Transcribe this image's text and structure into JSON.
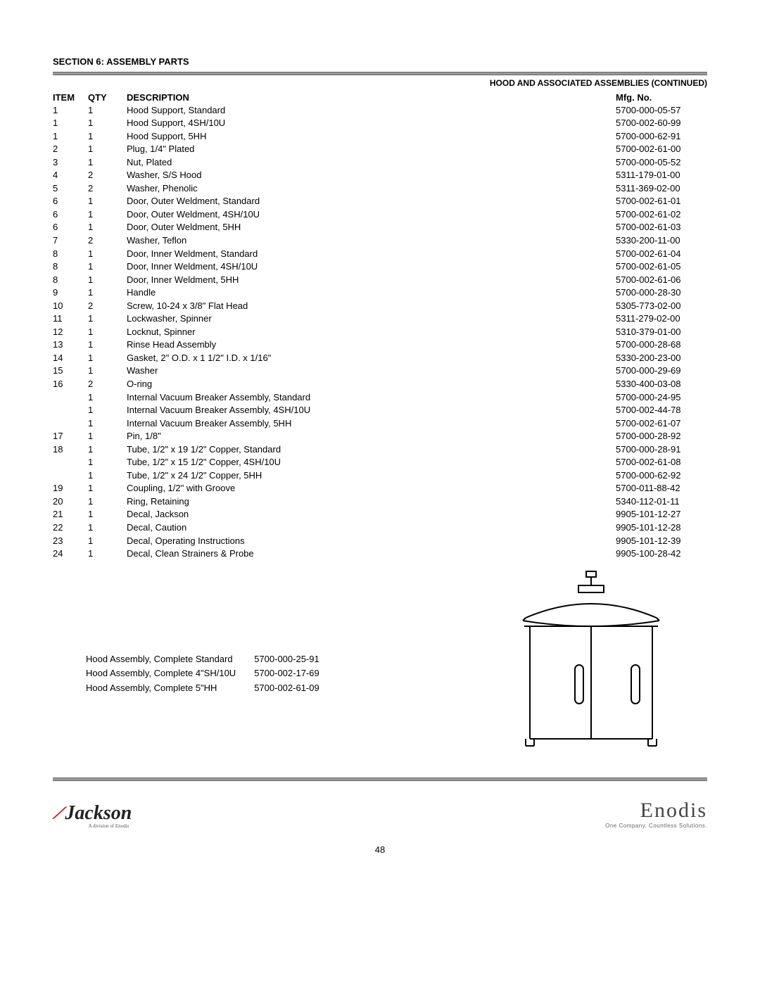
{
  "section_header": "SECTION 6: ASSEMBLY PARTS",
  "sub_header": "HOOD AND ASSOCIATED ASSEMBLIES (CONTINUED)",
  "columns": {
    "item": "ITEM",
    "qty": "QTY",
    "desc": "DESCRIPTION",
    "mfg": "Mfg. No."
  },
  "rows": [
    {
      "item": "1",
      "qty": "1",
      "desc": "Hood Support, Standard",
      "mfg": "5700-000-05-57",
      "indent": 0
    },
    {
      "item": "1",
      "qty": "1",
      "desc": "Hood Support, 4SH/10U",
      "mfg": "5700-002-60-99",
      "indent": 0
    },
    {
      "item": "1",
      "qty": "1",
      "desc": "Hood Support, 5HH",
      "mfg": "5700-000-62-91",
      "indent": 0
    },
    {
      "item": "2",
      "qty": "1",
      "desc": "Plug, 1/4\" Plated",
      "mfg": "5700-002-61-00",
      "indent": 0
    },
    {
      "item": "3",
      "qty": "1",
      "desc": "Nut, Plated",
      "mfg": "5700-000-05-52",
      "indent": 0
    },
    {
      "item": "4",
      "qty": "2",
      "desc": "Washer, S/S Hood",
      "mfg": "5311-179-01-00",
      "indent": 0
    },
    {
      "item": "5",
      "qty": "2",
      "desc": "Washer, Phenolic",
      "mfg": "5311-369-02-00",
      "indent": 0
    },
    {
      "item": "6",
      "qty": "1",
      "desc": "Door, Outer Weldment, Standard",
      "mfg": "5700-002-61-01",
      "indent": 0
    },
    {
      "item": "6",
      "qty": "1",
      "desc": "Door, Outer Weldment, 4SH/10U",
      "mfg": "5700-002-61-02",
      "indent": 0
    },
    {
      "item": "6",
      "qty": "1",
      "desc": "Door, Outer Weldment, 5HH",
      "mfg": "5700-002-61-03",
      "indent": 0
    },
    {
      "item": "7",
      "qty": "2",
      "desc": "Washer, Teflon",
      "mfg": "5330-200-11-00",
      "indent": 0
    },
    {
      "item": "8",
      "qty": "1",
      "desc": "Door, Inner Weldment, Standard",
      "mfg": "5700-002-61-04",
      "indent": 0
    },
    {
      "item": "8",
      "qty": "1",
      "desc": "Door, Inner Weldment, 4SH/10U",
      "mfg": "5700-002-61-05",
      "indent": 0
    },
    {
      "item": "8",
      "qty": "1",
      "desc": "Door, Inner Weldment, 5HH",
      "mfg": "5700-002-61-06",
      "indent": 0
    },
    {
      "item": "9",
      "qty": "1",
      "desc": "Handle",
      "mfg": "5700-000-28-30",
      "indent": 0
    },
    {
      "item": "10",
      "qty": "2",
      "desc": "Screw, 10-24 x 3/8\" Flat Head",
      "mfg": "5305-773-02-00",
      "indent": 0
    },
    {
      "item": "11",
      "qty": "1",
      "desc": "Lockwasher, Spinner",
      "mfg": "5311-279-02-00",
      "indent": 0
    },
    {
      "item": "12",
      "qty": "1",
      "desc": "Locknut, Spinner",
      "mfg": "5310-379-01-00",
      "indent": 0
    },
    {
      "item": "13",
      "qty": "1",
      "desc": "Rinse Head Assembly",
      "mfg": "5700-000-28-68",
      "indent": 0
    },
    {
      "item": "14",
      "qty": "1",
      "desc": "Gasket, 2\" O.D. x 1 1/2\" I.D. x 1/16\"",
      "mfg": "5330-200-23-00",
      "indent": 0
    },
    {
      "item": "15",
      "qty": "1",
      "desc": "Washer",
      "mfg": "5700-000-29-69",
      "indent": 0
    },
    {
      "item": "16",
      "qty": "2",
      "desc": "O-ring",
      "mfg": "5330-400-03-08",
      "indent": 0
    },
    {
      "item": "",
      "qty": "1",
      "desc": "Internal Vacuum Breaker Assembly, Standard",
      "mfg": "5700-000-24-95",
      "indent": 0
    },
    {
      "item": "",
      "qty": "1",
      "desc": "Internal Vacuum Breaker Assembly, 4SH/10U",
      "mfg": "5700-002-44-78",
      "indent": 0
    },
    {
      "item": "",
      "qty": "1",
      "desc": "Internal Vacuum Breaker Assembly, 5HH",
      "mfg": "5700-002-61-07",
      "indent": 0
    },
    {
      "item": "17",
      "qty": "1",
      "desc": "Pin, 1/8\"",
      "mfg": "5700-000-28-92",
      "indent": 1
    },
    {
      "item": "18",
      "qty": "1",
      "desc": "Tube, 1/2\" x 19 1/2\" Copper, Standard",
      "mfg": "5700-000-28-91",
      "indent": 1
    },
    {
      "item": "",
      "qty": "1",
      "desc": "Tube, 1/2\" x 15 1/2\" Copper, 4SH/10U",
      "mfg": "5700-002-61-08",
      "indent": 1
    },
    {
      "item": "",
      "qty": "1",
      "desc": "Tube, 1/2\" x 24 1/2\" Copper, 5HH",
      "mfg": "5700-000-62-92",
      "indent": 1
    },
    {
      "item": "19",
      "qty": "1",
      "desc": "Coupling, 1/2\" with Groove",
      "mfg": "5700-011-88-42",
      "indent": 1
    },
    {
      "item": "20",
      "qty": "1",
      "desc": "Ring, Retaining",
      "mfg": "5340-112-01-11",
      "indent": 1
    },
    {
      "item": "21",
      "qty": "1",
      "desc": "Decal, Jackson",
      "mfg": "9905-101-12-27",
      "indent": 1
    },
    {
      "item": "22",
      "qty": "1",
      "desc": "Decal, Caution",
      "mfg": "9905-101-12-28",
      "indent": 1
    },
    {
      "item": "23",
      "qty": "1",
      "desc": "Decal, Operating Instructions",
      "mfg": "9905-101-12-39",
      "indent": 1
    },
    {
      "item": "24",
      "qty": "1",
      "desc": "Decal, Clean Strainers & Probe",
      "mfg": "9905-100-28-42",
      "indent": 1
    }
  ],
  "assembly_rows": [
    {
      "desc": "Hood Assembly, Complete Standard",
      "mfg": "5700-000-25-91"
    },
    {
      "desc": "Hood Assembly, Complete 4\"SH/10U",
      "mfg": "5700-002-17-69"
    },
    {
      "desc": "Hood Assembly, Complete 5\"HH",
      "mfg": "5700-002-61-09"
    }
  ],
  "logos": {
    "jackson_name": "Jackson",
    "jackson_tagline": "A division of Enodis",
    "enodis_name": "Enodis",
    "enodis_tagline": "One Company. Countless Solutions."
  },
  "page_number": "48",
  "diagram": {
    "stroke": "#000000",
    "stroke_width": 2,
    "background": "#ffffff"
  }
}
